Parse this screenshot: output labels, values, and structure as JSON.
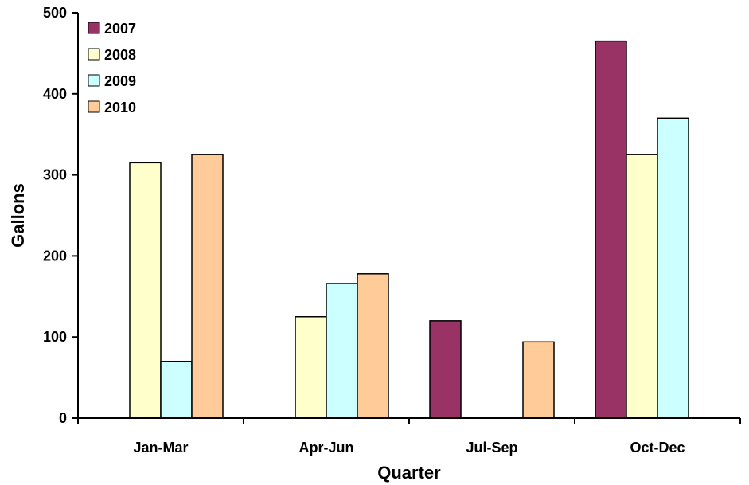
{
  "chart_data": {
    "type": "bar",
    "xlabel": "Quarter",
    "ylabel": "Gallons",
    "categories": [
      "Jan-Mar",
      "Apr-Jun",
      "Jul-Sep",
      "Oct-Dec"
    ],
    "series": [
      {
        "name": "2007",
        "color": "#993366",
        "values": [
          null,
          null,
          120,
          465
        ]
      },
      {
        "name": "2008",
        "color": "#FFFFCC",
        "values": [
          315,
          125,
          null,
          325
        ]
      },
      {
        "name": "2009",
        "color": "#CCFFFF",
        "values": [
          70,
          166,
          null,
          370
        ]
      },
      {
        "name": "2010",
        "color": "#FFCC99",
        "values": [
          325,
          178,
          94,
          null
        ]
      }
    ],
    "ylim": [
      0,
      500
    ],
    "yticks": [
      0,
      100,
      200,
      300,
      400,
      500
    ],
    "legend_position": "top-left",
    "grid": false
  }
}
